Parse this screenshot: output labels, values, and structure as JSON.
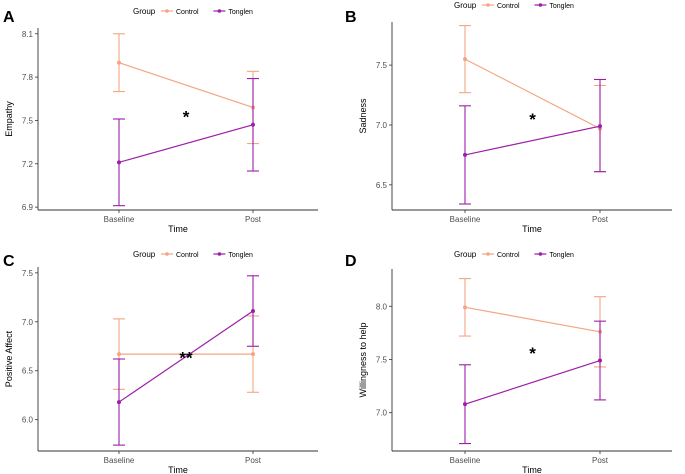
{
  "colors": {
    "control": "#F4A582",
    "tonglen": "#9C1FA8",
    "axis": "#333333",
    "tick_text": "#4D4D4D"
  },
  "chart_data": [
    {
      "panel_label": "A",
      "type": "line",
      "legend_title": "Group",
      "legend_position": "top",
      "xlabel": "Time",
      "ylabel": "Empathy",
      "categories": [
        "Baseline",
        "Post"
      ],
      "ylim": [
        6.88,
        8.14
      ],
      "yticks": [
        6.9,
        7.2,
        7.5,
        7.8,
        8.1
      ],
      "ytick_labels": [
        "6.9",
        "7.2",
        "7.5",
        "7.8",
        "8.1"
      ],
      "series": [
        {
          "name": "Control",
          "values": [
            7.9,
            7.59
          ],
          "lower": [
            7.7,
            7.34
          ],
          "upper": [
            8.1,
            7.84
          ]
        },
        {
          "name": "Tonglen",
          "values": [
            7.21,
            7.47
          ],
          "lower": [
            6.91,
            7.15
          ],
          "upper": [
            7.51,
            7.79
          ]
        }
      ],
      "annotation": "*"
    },
    {
      "panel_label": "B",
      "type": "line",
      "legend_title": "Group",
      "legend_position": "top",
      "xlabel": "Time",
      "ylabel": "Sadness",
      "categories": [
        "Baseline",
        "Post"
      ],
      "ylim": [
        6.29,
        7.86
      ],
      "yticks": [
        6.5,
        7.0,
        7.5
      ],
      "ytick_labels": [
        "6.5",
        "7.0",
        "7.5"
      ],
      "series": [
        {
          "name": "Control",
          "values": [
            7.55,
            6.97
          ],
          "lower": [
            7.27,
            6.61
          ],
          "upper": [
            7.83,
            7.33
          ]
        },
        {
          "name": "Tonglen",
          "values": [
            6.75,
            6.99
          ],
          "lower": [
            6.34,
            6.61
          ],
          "upper": [
            7.16,
            7.38
          ]
        }
      ],
      "annotation": "*"
    },
    {
      "panel_label": "C",
      "type": "line",
      "legend_title": "Group",
      "legend_position": "top",
      "xlabel": "Time",
      "ylabel": "Positive Affect",
      "categories": [
        "Baseline",
        "Post"
      ],
      "ylim": [
        5.68,
        7.56
      ],
      "yticks": [
        6.0,
        6.5,
        7.0,
        7.5
      ],
      "ytick_labels": [
        "6.0",
        "6.5",
        "7.0",
        "7.5"
      ],
      "series": [
        {
          "name": "Control",
          "values": [
            6.67,
            6.67
          ],
          "lower": [
            6.31,
            6.28
          ],
          "upper": [
            7.03,
            7.06
          ]
        },
        {
          "name": "Tonglen",
          "values": [
            6.18,
            7.11
          ],
          "lower": [
            5.74,
            6.75
          ],
          "upper": [
            6.62,
            7.47
          ]
        }
      ],
      "annotation": "**"
    },
    {
      "panel_label": "D",
      "type": "line",
      "legend_title": "Group",
      "legend_position": "top",
      "xlabel": "Time",
      "ylabel": "Willingness to help",
      "categories": [
        "Baseline",
        "Post"
      ],
      "ylim": [
        6.64,
        8.35
      ],
      "yticks": [
        7.0,
        7.5,
        8.0
      ],
      "ytick_labels": [
        "7.0",
        "7.5",
        "8.0"
      ],
      "series": [
        {
          "name": "Control",
          "values": [
            7.99,
            7.76
          ],
          "lower": [
            7.72,
            7.43
          ],
          "upper": [
            8.26,
            8.09
          ]
        },
        {
          "name": "Tonglen",
          "values": [
            7.08,
            7.49
          ],
          "lower": [
            6.71,
            7.12
          ],
          "upper": [
            7.45,
            7.86
          ]
        }
      ],
      "annotation": "*"
    }
  ]
}
